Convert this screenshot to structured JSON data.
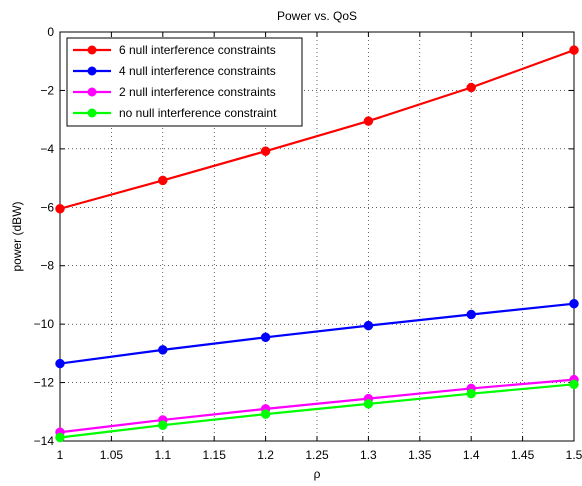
{
  "chart_data": {
    "type": "line",
    "title": "Power vs. QoS",
    "xlabel": "ρ",
    "ylabel": "power (dBW)",
    "x": [
      1,
      1.1,
      1.2,
      1.3,
      1.4,
      1.5
    ],
    "xlim": [
      1,
      1.5
    ],
    "ylim": [
      -14,
      0
    ],
    "xticks": [
      "1",
      "1.05",
      "1.1",
      "1.15",
      "1.2",
      "1.25",
      "1.3",
      "1.35",
      "1.4",
      "1.45",
      "1.5"
    ],
    "yticks": [
      "0",
      "−2",
      "−4",
      "−6",
      "−8",
      "−10",
      "−12",
      "−14"
    ],
    "grid": true,
    "legend_position": "top-left",
    "series": [
      {
        "name": "6 null interference constraints",
        "color": "#ff0000",
        "values": [
          -6.05,
          -5.08,
          -4.08,
          -3.05,
          -1.9,
          -0.62
        ]
      },
      {
        "name": "4 null interference constraints",
        "color": "#0000ff",
        "values": [
          -11.35,
          -10.88,
          -10.45,
          -10.05,
          -9.67,
          -9.3
        ]
      },
      {
        "name": "2 null interference constraints",
        "color": "#ff00ff",
        "values": [
          -13.7,
          -13.28,
          -12.9,
          -12.55,
          -12.2,
          -11.9
        ]
      },
      {
        "name": "no null interference constraint",
        "color": "#00ff00",
        "values": [
          -13.88,
          -13.46,
          -13.08,
          -12.73,
          -12.38,
          -12.06
        ]
      }
    ]
  }
}
